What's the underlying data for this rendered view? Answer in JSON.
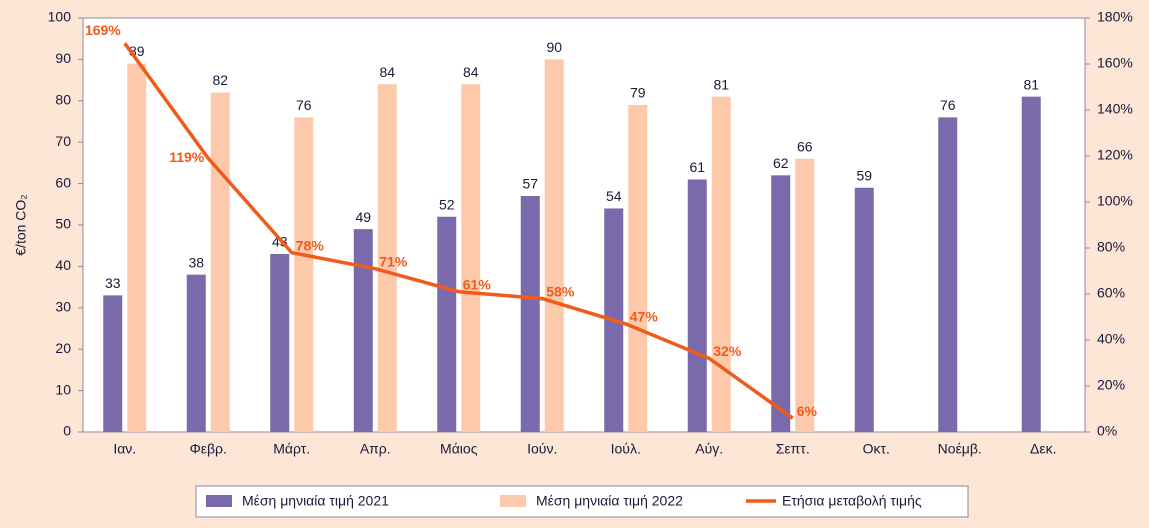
{
  "chart_data": {
    "type": "bar-line",
    "y_label": "€/ton CO₂",
    "categories": [
      "Ιαν.",
      "Φεβρ.",
      "Μάρτ.",
      "Απρ.",
      "Μάιος",
      "Ιούν.",
      "Ιούλ.",
      "Αύγ.",
      "Σεπτ.",
      "Οκτ.",
      "Νοέμβ.",
      "Δεκ."
    ],
    "series": [
      {
        "name": "Μέση μηνιαία τιμή 2021",
        "type": "bar",
        "color": "#7b6aab",
        "values": [
          33,
          38,
          43,
          49,
          52,
          57,
          54,
          61,
          62,
          59,
          76,
          81
        ]
      },
      {
        "name": "Μέση μηνιαία τιμή 2022",
        "type": "bar",
        "color": "#fcc9ab",
        "values": [
          89,
          82,
          76,
          84,
          84,
          90,
          79,
          81,
          66,
          null,
          null,
          null
        ]
      },
      {
        "name": "Ετήσια μεταβολή τιμής",
        "type": "line",
        "axis": "y2",
        "color": "#f05a1a",
        "values": [
          169,
          119,
          78,
          71,
          61,
          58,
          47,
          32,
          6,
          null,
          null,
          null
        ],
        "value_labels": [
          "169%",
          "119%",
          "78%",
          "71%",
          "61%",
          "58%",
          "47%",
          "32%",
          "6%",
          null,
          null,
          null
        ]
      }
    ],
    "ylim": [
      0,
      100
    ],
    "yticks": [
      0,
      10,
      20,
      30,
      40,
      50,
      60,
      70,
      80,
      90,
      100
    ],
    "y2lim": [
      0,
      180
    ],
    "y2ticks": [
      {
        "value": 0,
        "label": "0%"
      },
      {
        "value": 20,
        "label": "20%"
      },
      {
        "value": 40,
        "label": "40%"
      },
      {
        "value": 60,
        "label": "60%"
      },
      {
        "value": 80,
        "label": "80%"
      },
      {
        "value": 100,
        "label": "100%"
      },
      {
        "value": 120,
        "label": "120%"
      },
      {
        "value": 140,
        "label": "140%"
      },
      {
        "value": 160,
        "label": "160%"
      },
      {
        "value": 180,
        "label": "180%"
      }
    ],
    "legend": "bottom"
  }
}
